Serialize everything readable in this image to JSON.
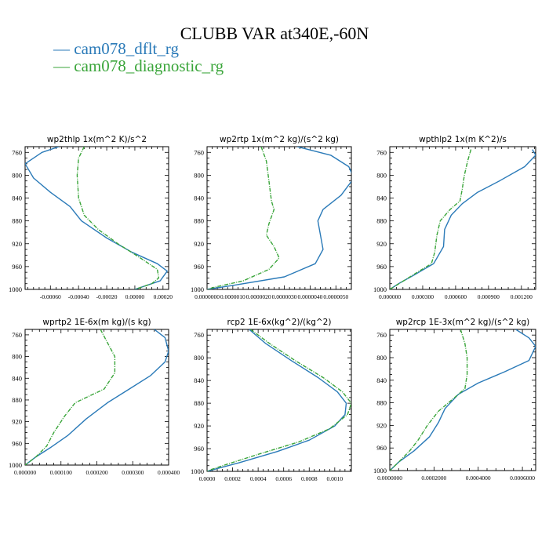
{
  "title": "CLUBB VAR at340E,-60N",
  "legend": [
    {
      "label": "— cam078_dflt_rg",
      "color": "#2a7ab8"
    },
    {
      "label": "— cam078_diagnostic_rg",
      "color": "#3aa53a"
    }
  ],
  "chart_data": [
    {
      "type": "line",
      "title": "wp2thlp   1x(m^2 K)/s^2",
      "xlim": [
        -0.00078,
        0.00024
      ],
      "xticks": [
        -0.0006,
        -0.0004,
        -0.0002,
        0.0,
        0.0002
      ],
      "xtick_labels": [
        "-0.00060",
        "-0.00040",
        "-0.00020",
        "0.00000",
        "0.00020"
      ],
      "ylim": [
        1000,
        750
      ],
      "yticks": [
        760,
        800,
        840,
        880,
        920,
        960,
        1000
      ],
      "series": [
        {
          "name": "cam078_dflt_rg",
          "color": "#2a7ab8",
          "points": [
            [
              -0.00054,
              750
            ],
            [
              -0.00066,
              760
            ],
            [
              -0.00078,
              780
            ],
            [
              -0.00072,
              805
            ],
            [
              -0.0006,
              830
            ],
            [
              -0.00046,
              855
            ],
            [
              -0.00038,
              880
            ],
            [
              -0.0002,
              910
            ],
            [
              -2e-05,
              935
            ],
            [
              0.00016,
              955
            ],
            [
              0.00023,
              968
            ],
            [
              0.00018,
              985
            ],
            [
              0.0,
              1000
            ]
          ]
        },
        {
          "name": "cam078_diagnostic_rg",
          "color": "#3aa53a",
          "points": [
            [
              -0.00036,
              750
            ],
            [
              -0.0004,
              770
            ],
            [
              -0.00041,
              800
            ],
            [
              -0.0004,
              840
            ],
            [
              -0.00036,
              870
            ],
            [
              -0.00026,
              895
            ],
            [
              -0.00012,
              920
            ],
            [
              4e-05,
              945
            ],
            [
              0.00016,
              965
            ],
            [
              0.00017,
              980
            ],
            [
              0.00012,
              990
            ],
            [
              0.0,
              1000
            ]
          ]
        }
      ]
    },
    {
      "type": "line",
      "title": "wp2rtp   1x(m^2 kg)/(s^2 kg)",
      "xlim": [
        0.0,
        5.6e-06
      ],
      "xticks": [
        0.0,
        1e-06,
        2e-06,
        3e-06,
        4e-06,
        5e-06
      ],
      "xtick_labels": [
        "0.0000000",
        "0.0000010",
        "0.0000020",
        "0.0000030",
        "0.0000040",
        "0.0000050"
      ],
      "ylim": [
        1000,
        750
      ],
      "yticks": [
        760,
        800,
        840,
        880,
        920,
        960,
        1000
      ],
      "series": [
        {
          "name": "cam078_dflt_rg",
          "color": "#2a7ab8",
          "points": [
            [
              3.5e-06,
              750
            ],
            [
              4.8e-06,
              765
            ],
            [
              5.5e-06,
              785
            ],
            [
              5.7e-06,
              805
            ],
            [
              5.2e-06,
              835
            ],
            [
              4.5e-06,
              860
            ],
            [
              4.3e-06,
              880
            ],
            [
              4.4e-06,
              905
            ],
            [
              4.5e-06,
              930
            ],
            [
              4.2e-06,
              955
            ],
            [
              3e-06,
              978
            ],
            [
              1e-06,
              993
            ],
            [
              0.0,
              1000
            ]
          ]
        },
        {
          "name": "cam078_diagnostic_rg",
          "color": "#3aa53a",
          "points": [
            [
              2.1e-06,
              750
            ],
            [
              2.3e-06,
              775
            ],
            [
              2.4e-06,
              810
            ],
            [
              2.5e-06,
              845
            ],
            [
              2.6e-06,
              860
            ],
            [
              2.4e-06,
              885
            ],
            [
              2.3e-06,
              905
            ],
            [
              2.6e-06,
              925
            ],
            [
              2.8e-06,
              945
            ],
            [
              2.4e-06,
              965
            ],
            [
              1.4e-06,
              985
            ],
            [
              3e-07,
              996
            ],
            [
              0.0,
              1000
            ]
          ]
        }
      ]
    },
    {
      "type": "line",
      "title": "wpthlp2   1x(m K^2)/s",
      "xlim": [
        0.0,
        0.00133
      ],
      "xticks": [
        0.0,
        0.0003,
        0.0006,
        0.0009,
        0.0012
      ],
      "xtick_labels": [
        "0.000000",
        "0.000300",
        "0.000600",
        "0.000900",
        "0.001200"
      ],
      "ylim": [
        1000,
        750
      ],
      "yticks": [
        760,
        800,
        840,
        880,
        920,
        960,
        1000
      ],
      "series": [
        {
          "name": "cam078_dflt_rg",
          "color": "#2a7ab8",
          "points": [
            [
              0.0013,
              755
            ],
            [
              0.00133,
              765
            ],
            [
              0.00123,
              785
            ],
            [
              0.001,
              810
            ],
            [
              0.0008,
              830
            ],
            [
              0.00066,
              850
            ],
            [
              0.00056,
              870
            ],
            [
              0.0005,
              895
            ],
            [
              0.00049,
              925
            ],
            [
              0.0004,
              955
            ],
            [
              0.00022,
              975
            ],
            [
              8e-05,
              990
            ],
            [
              0.0,
              1000
            ]
          ]
        },
        {
          "name": "cam078_diagnostic_rg",
          "color": "#3aa53a",
          "points": [
            [
              0.00074,
              755
            ],
            [
              0.00071,
              775
            ],
            [
              0.00068,
              800
            ],
            [
              0.00066,
              825
            ],
            [
              0.00064,
              845
            ],
            [
              0.00055,
              860
            ],
            [
              0.00046,
              880
            ],
            [
              0.00043,
              905
            ],
            [
              0.00041,
              935
            ],
            [
              0.00038,
              955
            ],
            [
              0.00025,
              970
            ],
            [
              0.0001,
              988
            ],
            [
              0.0,
              1000
            ]
          ]
        }
      ]
    },
    {
      "type": "line",
      "title": "wprtp2   1E-6x(m kg)/(s kg)",
      "xlim": [
        0.0,
        0.0004
      ],
      "xticks": [
        0.0,
        0.0001,
        0.0002,
        0.0003,
        0.0004
      ],
      "xtick_labels": [
        "0.000000",
        "0.000100",
        "0.000200",
        "0.000300",
        "0.000400"
      ],
      "ylim": [
        1000,
        750
      ],
      "yticks": [
        760,
        800,
        840,
        880,
        920,
        960,
        1000
      ],
      "series": [
        {
          "name": "cam078_dflt_rg",
          "color": "#2a7ab8",
          "points": [
            [
              0.00036,
              750
            ],
            [
              0.00039,
              765
            ],
            [
              0.0004,
              790
            ],
            [
              0.00039,
              810
            ],
            [
              0.00035,
              835
            ],
            [
              0.00029,
              860
            ],
            [
              0.00023,
              885
            ],
            [
              0.00017,
              915
            ],
            [
              0.00012,
              945
            ],
            [
              7e-05,
              968
            ],
            [
              3e-05,
              985
            ],
            [
              0.0,
              1000
            ]
          ]
        },
        {
          "name": "cam078_diagnostic_rg",
          "color": "#3aa53a",
          "points": [
            [
              0.00021,
              750
            ],
            [
              0.00023,
              775
            ],
            [
              0.00025,
              800
            ],
            [
              0.00025,
              830
            ],
            [
              0.00022,
              860
            ],
            [
              0.00014,
              885
            ],
            [
              0.00011,
              910
            ],
            [
              8e-05,
              940
            ],
            [
              6e-05,
              965
            ],
            [
              3e-05,
              985
            ],
            [
              0.0,
              1000
            ]
          ]
        }
      ]
    },
    {
      "type": "line",
      "title": "rcp2   1E-6x(kg^2)/(kg^2)",
      "xlim": [
        0.0,
        0.00113
      ],
      "xticks": [
        0.0,
        0.0002,
        0.0004,
        0.0006,
        0.0008,
        0.001
      ],
      "xtick_labels": [
        "0.0000",
        "0.0002",
        "0.0004",
        "0.0006",
        "0.0008",
        "0.0010"
      ],
      "ylim": [
        1000,
        750
      ],
      "yticks": [
        760,
        800,
        840,
        880,
        920,
        960,
        1000
      ],
      "series": [
        {
          "name": "cam078_dflt_rg",
          "color": "#2a7ab8",
          "points": [
            [
              0.00033,
              750
            ],
            [
              0.00046,
              775
            ],
            [
              0.00066,
              805
            ],
            [
              0.00087,
              835
            ],
            [
              0.00102,
              860
            ],
            [
              0.00109,
              880
            ],
            [
              0.00108,
              900
            ],
            [
              0.001,
              920
            ],
            [
              0.0008,
              945
            ],
            [
              0.00055,
              965
            ],
            [
              0.00025,
              985
            ],
            [
              8e-05,
              995
            ],
            [
              0.0,
              1000
            ]
          ]
        },
        {
          "name": "cam078_diagnostic_rg",
          "color": "#3aa53a",
          "points": [
            [
              0.00034,
              750
            ],
            [
              0.00049,
              775
            ],
            [
              0.00069,
              805
            ],
            [
              0.00091,
              835
            ],
            [
              0.00106,
              860
            ],
            [
              0.00113,
              880
            ],
            [
              0.0011,
              900
            ],
            [
              0.00096,
              925
            ],
            [
              0.00072,
              948
            ],
            [
              0.0004,
              970
            ],
            [
              0.00015,
              988
            ],
            [
              3e-05,
              997
            ],
            [
              0.0,
              1000
            ]
          ]
        }
      ]
    },
    {
      "type": "line",
      "title": "wp2rcp   1E-3x(m^2 kg)/(s^2 kg)",
      "xlim": [
        0.0,
        0.00066
      ],
      "xticks": [
        0.0,
        0.0002,
        0.0004,
        0.0006
      ],
      "xtick_labels": [
        "0.0000000",
        "0.0002000",
        "0.0004000",
        "0.0006000"
      ],
      "ylim": [
        1000,
        750
      ],
      "yticks": [
        760,
        800,
        840,
        880,
        920,
        960,
        1000
      ],
      "series": [
        {
          "name": "cam078_dflt_rg",
          "color": "#2a7ab8",
          "points": [
            [
              0.00057,
              750
            ],
            [
              0.00063,
              765
            ],
            [
              0.00066,
              780
            ],
            [
              0.00063,
              805
            ],
            [
              0.00052,
              825
            ],
            [
              0.0004,
              845
            ],
            [
              0.00031,
              865
            ],
            [
              0.00025,
              890
            ],
            [
              0.00022,
              915
            ],
            [
              0.00018,
              940
            ],
            [
              0.00011,
              965
            ],
            [
              4e-05,
              985
            ],
            [
              0.0,
              1000
            ]
          ]
        },
        {
          "name": "cam078_diagnostic_rg",
          "color": "#3aa53a",
          "points": [
            [
              0.00032,
              750
            ],
            [
              0.00034,
              775
            ],
            [
              0.00035,
              800
            ],
            [
              0.00035,
              830
            ],
            [
              0.00034,
              855
            ],
            [
              0.00028,
              875
            ],
            [
              0.00022,
              895
            ],
            [
              0.00017,
              920
            ],
            [
              0.00013,
              945
            ],
            [
              9e-05,
              965
            ],
            [
              4e-05,
              985
            ],
            [
              0.0,
              1000
            ]
          ]
        }
      ]
    }
  ]
}
